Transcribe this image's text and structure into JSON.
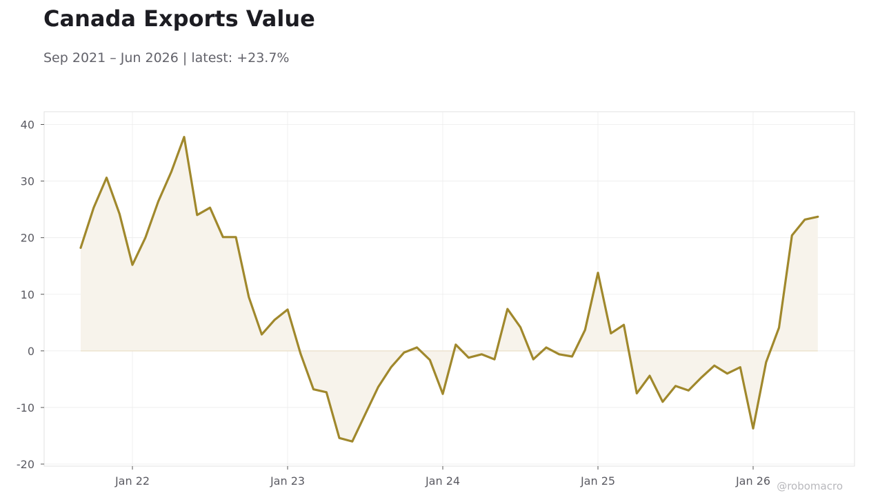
{
  "header": {
    "title": "Canada Exports Value",
    "subtitle": "Sep 2021 – Jun 2026 | latest: +23.7%"
  },
  "watermark": "@robomacro",
  "colors": {
    "line": "#a0882c",
    "fill": "#f7f3eb",
    "grid": "#ececec",
    "frame": "#e0e0e0",
    "zero_line": "#ede3cf"
  },
  "chart_data": {
    "type": "area",
    "title": "Canada Exports Value",
    "xlabel": "",
    "ylabel": "",
    "ylim": [
      -20,
      40
    ],
    "yticks": [
      -20,
      -10,
      0,
      10,
      20,
      30,
      40
    ],
    "xticks": [
      {
        "date": "2022-01",
        "label": "Jan 22"
      },
      {
        "date": "2023-01",
        "label": "Jan 23"
      },
      {
        "date": "2024-01",
        "label": "Jan 24"
      },
      {
        "date": "2025-01",
        "label": "Jan 25"
      },
      {
        "date": "2026-01",
        "label": "Jan 26"
      }
    ],
    "grid": true,
    "x_range": [
      "2021-06",
      "2026-09"
    ],
    "series": [
      {
        "x": [
          "2021-09",
          "2021-10",
          "2021-11",
          "2021-12",
          "2022-01",
          "2022-02",
          "2022-03",
          "2022-04",
          "2022-05",
          "2022-06",
          "2022-07",
          "2022-08",
          "2022-09",
          "2022-10",
          "2022-11",
          "2022-12",
          "2023-01",
          "2023-02",
          "2023-03",
          "2023-04",
          "2023-05",
          "2023-06",
          "2023-07",
          "2023-08",
          "2023-09",
          "2023-10",
          "2023-11",
          "2023-12",
          "2024-01",
          "2024-02",
          "2024-03",
          "2024-04",
          "2024-05",
          "2024-06",
          "2024-07",
          "2024-08",
          "2024-09",
          "2024-10",
          "2024-11",
          "2024-12",
          "2025-01",
          "2025-02",
          "2025-03",
          "2025-04",
          "2025-05",
          "2025-06",
          "2025-07",
          "2025-08",
          "2025-09",
          "2025-10",
          "2025-11",
          "2025-12",
          "2026-01",
          "2026-02",
          "2026-03",
          "2026-04",
          "2026-05",
          "2026-06"
        ],
        "values": [
          18.2,
          25.3,
          30.6,
          24.2,
          15.2,
          20.0,
          26.4,
          31.6,
          37.8,
          24.0,
          25.3,
          20.1,
          20.1,
          9.5,
          2.9,
          5.5,
          7.3,
          -0.5,
          -6.8,
          -7.3,
          -15.4,
          -16.0,
          -11.2,
          -6.4,
          -2.9,
          -0.3,
          0.6,
          -1.6,
          -7.6,
          1.1,
          -1.2,
          -0.6,
          -1.5,
          7.4,
          4.2,
          -1.5,
          0.6,
          -0.6,
          -1.0,
          3.7,
          13.8,
          3.1,
          4.6,
          -7.5,
          -4.4,
          -9.0,
          -6.2,
          -7.0,
          -4.7,
          -2.6,
          -4.0,
          -2.9,
          -13.7,
          -2.0,
          4.1,
          20.4,
          23.2,
          23.7
        ]
      }
    ]
  }
}
